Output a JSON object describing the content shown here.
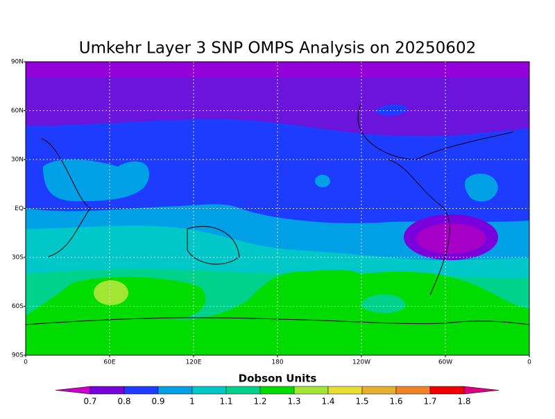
{
  "title": "Umkehr Layer 3 SNP OMPS Analysis on 20250602",
  "map": {
    "xlim": [
      0,
      360
    ],
    "ylim": [
      -90,
      90
    ],
    "xticks": [
      0,
      {
        "value": 60,
        "label": "60E"
      },
      {
        "value": 120,
        "label": "120E"
      },
      180,
      {
        "value": 240,
        "label": "120W"
      },
      {
        "value": 300,
        "label": "60W"
      },
      {
        "value": 360,
        "label": "0"
      }
    ],
    "yticks": [
      {
        "value": 90,
        "label": "90N"
      },
      {
        "value": 60,
        "label": "60N"
      },
      {
        "value": 30,
        "label": "30N"
      },
      {
        "value": 0,
        "label": "EQ"
      },
      {
        "value": -30,
        "label": "30S"
      },
      {
        "value": -60,
        "label": "60S"
      },
      {
        "value": -90,
        "label": "90S"
      }
    ],
    "grid": true
  },
  "colorbar": {
    "label": "Dobson Units",
    "levels": [
      0.7,
      0.8,
      0.9,
      1,
      1.1,
      1.2,
      1.3,
      1.4,
      1.5,
      1.6,
      1.7,
      1.8
    ],
    "colors": [
      "#c800c8",
      "#7a00dc",
      "#1e3cff",
      "#00a0e6",
      "#00c8c8",
      "#00d28c",
      "#00dc00",
      "#a0e632",
      "#e6dc32",
      "#e6af2d",
      "#f08228",
      "#f00000",
      "#dc0082"
    ]
  }
}
